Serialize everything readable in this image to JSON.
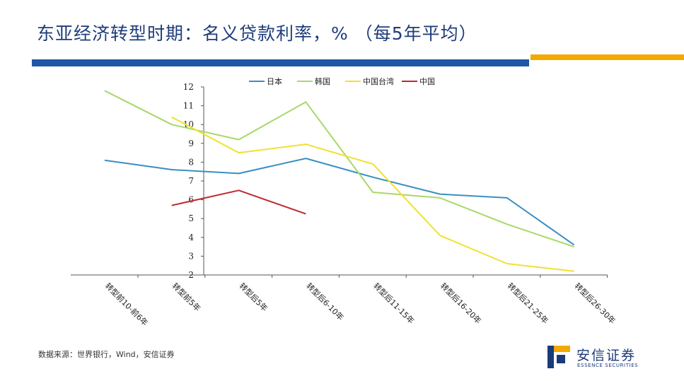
{
  "page": {
    "title": "东亚经济转型时期：名义贷款利率，%  （每5年平均）",
    "source": "数据来源：世界银行，Wind，安信证券",
    "logo_cn": "安信证券",
    "logo_en": "ESSENCE SECURITIES",
    "colors": {
      "title": "#1f3d7a",
      "rule_blue": "#1f57a8",
      "rule_gold": "#f2a900"
    }
  },
  "chart_data": {
    "type": "line",
    "categories": [
      "转型前10-前6年",
      "转型前5年",
      "转型后5年",
      "转型后6-10年",
      "转型后11-15年",
      "转型后16-20年",
      "转型后21-25年",
      "转型后26-30年"
    ],
    "ylim": [
      2,
      12
    ],
    "yticks": [
      2,
      3,
      4,
      5,
      6,
      7,
      8,
      9,
      10,
      11,
      12
    ],
    "legend_position": "top",
    "grid": false,
    "series": [
      {
        "name": "日本",
        "color": "#3a8fc2",
        "values": [
          8.1,
          7.6,
          7.4,
          8.2,
          7.2,
          6.3,
          6.1,
          3.6
        ]
      },
      {
        "name": "韩国",
        "color": "#a8d86a",
        "values": [
          11.8,
          10.0,
          9.2,
          11.2,
          6.4,
          6.1,
          4.7,
          3.5
        ]
      },
      {
        "name": "中国台湾",
        "color": "#f0e130",
        "values": [
          null,
          10.4,
          8.5,
          8.95,
          7.9,
          4.1,
          2.6,
          2.2
        ]
      },
      {
        "name": "中国",
        "color": "#c0282f",
        "values": [
          null,
          5.7,
          6.5,
          5.25,
          null,
          null,
          null,
          null
        ]
      }
    ]
  }
}
